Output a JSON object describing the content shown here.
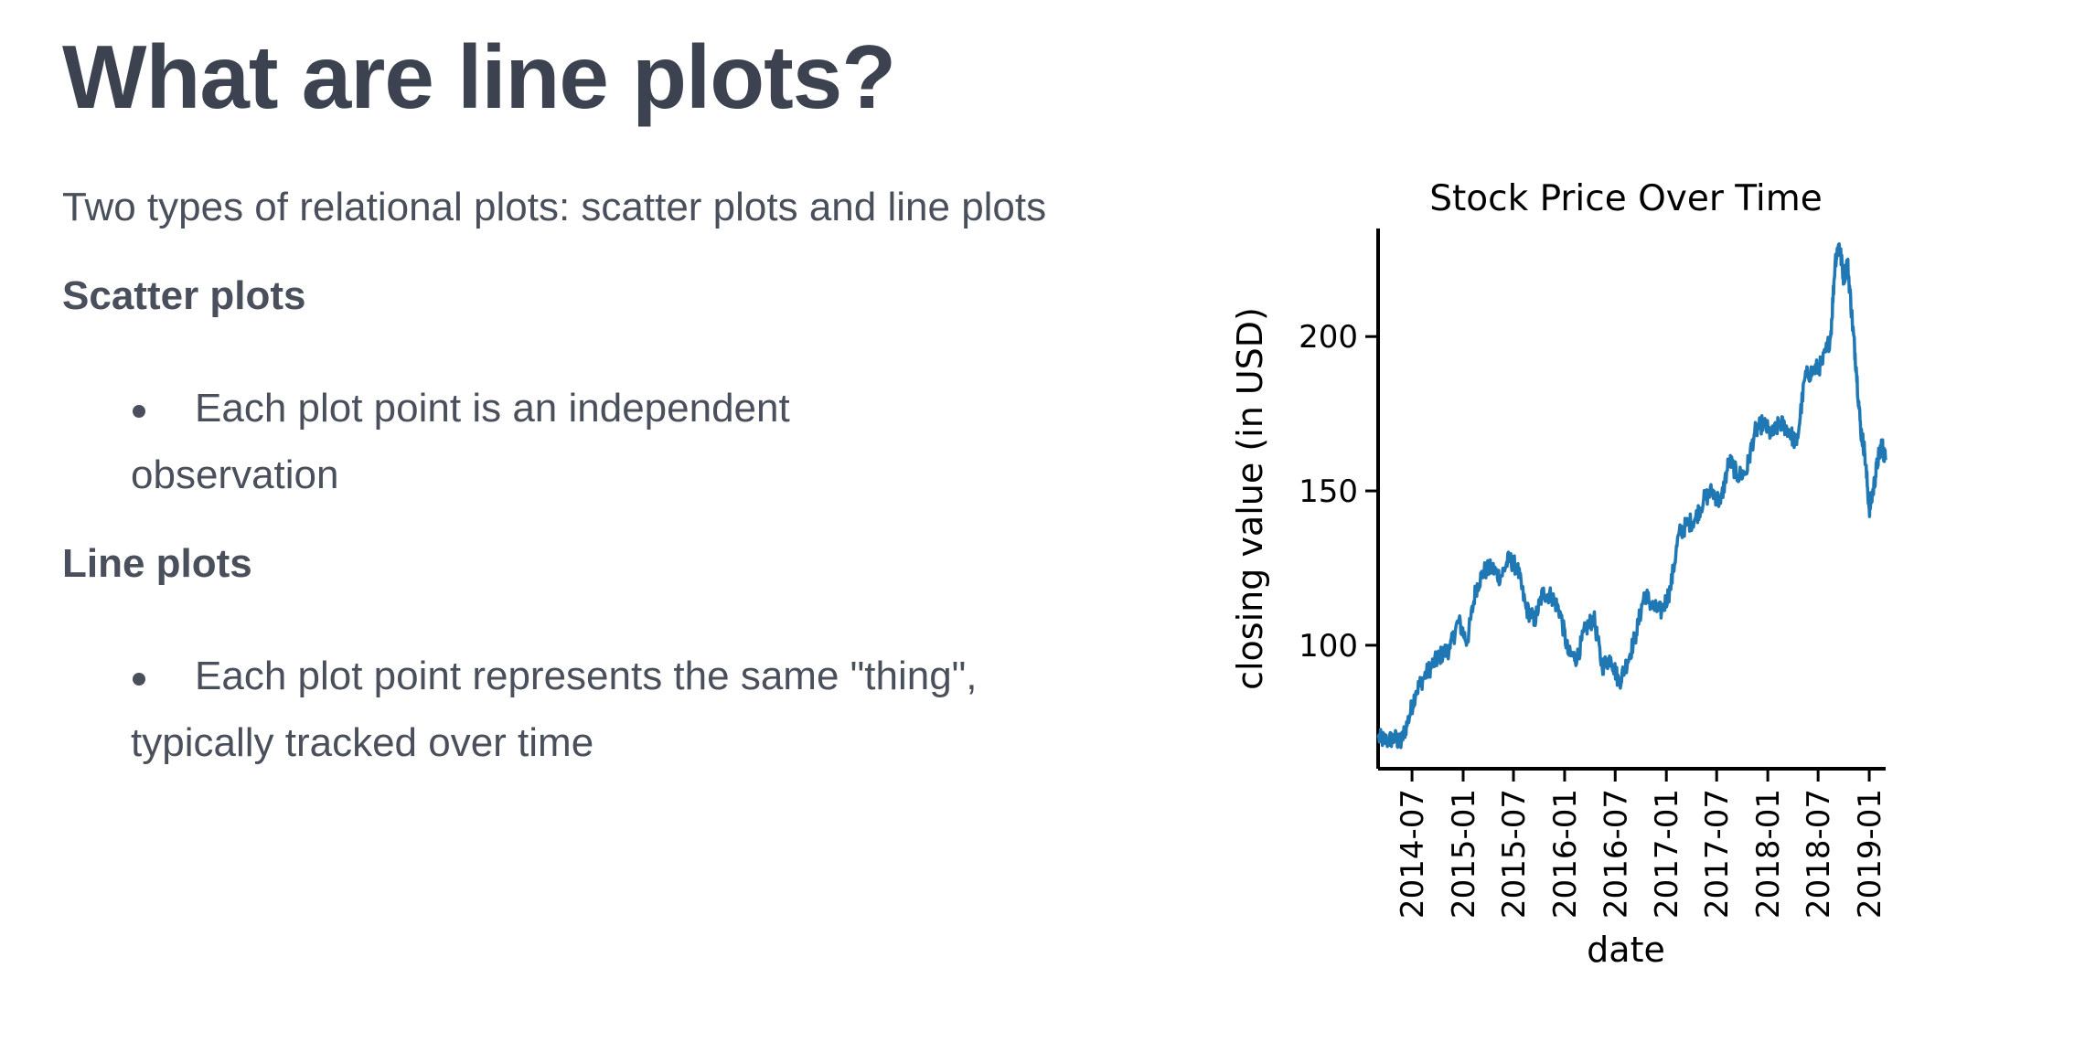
{
  "slide": {
    "title": "What are line plots?",
    "intro": "Two types of relational plots: scatter plots and line plots",
    "sections": [
      {
        "heading": "Scatter plots",
        "bullet_line1": "Each plot point is an independent",
        "bullet_line2": "observation"
      },
      {
        "heading": "Line plots",
        "bullet_line1": "Each plot point represents the same \"thing\",",
        "bullet_line2": "typically tracked over time"
      }
    ]
  },
  "colors": {
    "text": "#3d4251",
    "line": "#1f77b4",
    "axis": "#000000"
  },
  "chart_data": {
    "type": "line",
    "title": "Stock Price Over Time",
    "xlabel": "date",
    "ylabel": "closing value (in USD)",
    "xlim": [
      "2014-03-01",
      "2019-03-01"
    ],
    "ylim": [
      60,
      235
    ],
    "xticks": [
      "2014-07",
      "2015-01",
      "2015-07",
      "2016-01",
      "2016-07",
      "2017-01",
      "2017-07",
      "2018-01",
      "2018-07",
      "2019-01"
    ],
    "yticks": [
      100,
      150,
      200
    ],
    "grid": false,
    "legend": "none",
    "series": [
      {
        "x": [
          "2014-03-01",
          "2014-04-01",
          "2014-05-01",
          "2014-05-20",
          "2014-06-15",
          "2014-07-15",
          "2014-08-15",
          "2014-09-15",
          "2014-10-15",
          "2014-11-15",
          "2014-12-15",
          "2015-01-15",
          "2015-02-15",
          "2015-03-15",
          "2015-04-15",
          "2015-05-15",
          "2015-06-15",
          "2015-07-15",
          "2015-08-15",
          "2015-09-15",
          "2015-10-15",
          "2015-11-15",
          "2015-12-15",
          "2016-01-15",
          "2016-02-15",
          "2016-03-15",
          "2016-04-15",
          "2016-05-15",
          "2016-06-15",
          "2016-07-15",
          "2016-08-15",
          "2016-09-15",
          "2016-10-15",
          "2016-11-15",
          "2016-12-15",
          "2017-01-15",
          "2017-02-15",
          "2017-03-15",
          "2017-04-15",
          "2017-05-15",
          "2017-06-15",
          "2017-07-15",
          "2017-08-15",
          "2017-09-15",
          "2017-10-15",
          "2017-11-15",
          "2017-12-15",
          "2018-01-15",
          "2018-02-15",
          "2018-03-15",
          "2018-04-15",
          "2018-05-15",
          "2018-06-15",
          "2018-07-15",
          "2018-08-15",
          "2018-09-01",
          "2018-09-15",
          "2018-10-01",
          "2018-10-15",
          "2018-11-01",
          "2018-11-15",
          "2018-12-01",
          "2018-12-15",
          "2019-01-01",
          "2019-01-15",
          "2019-02-01",
          "2019-02-15",
          "2019-03-01"
        ],
        "y": [
          70,
          69,
          70,
          68,
          75,
          85,
          90,
          94,
          97,
          99,
          108,
          101,
          118,
          124,
          125,
          122,
          128,
          125,
          112,
          108,
          117,
          116,
          111,
          97,
          96,
          105,
          109,
          93,
          96,
          88,
          95,
          104,
          117,
          112,
          111,
          118,
          136,
          139,
          141,
          147,
          150,
          146,
          160,
          155,
          156,
          169,
          172,
          168,
          172,
          170,
          165,
          187,
          189,
          191,
          200,
          225,
          230,
          219,
          224,
          205,
          190,
          170,
          163,
          144,
          150,
          160,
          165,
          160
        ]
      }
    ]
  }
}
